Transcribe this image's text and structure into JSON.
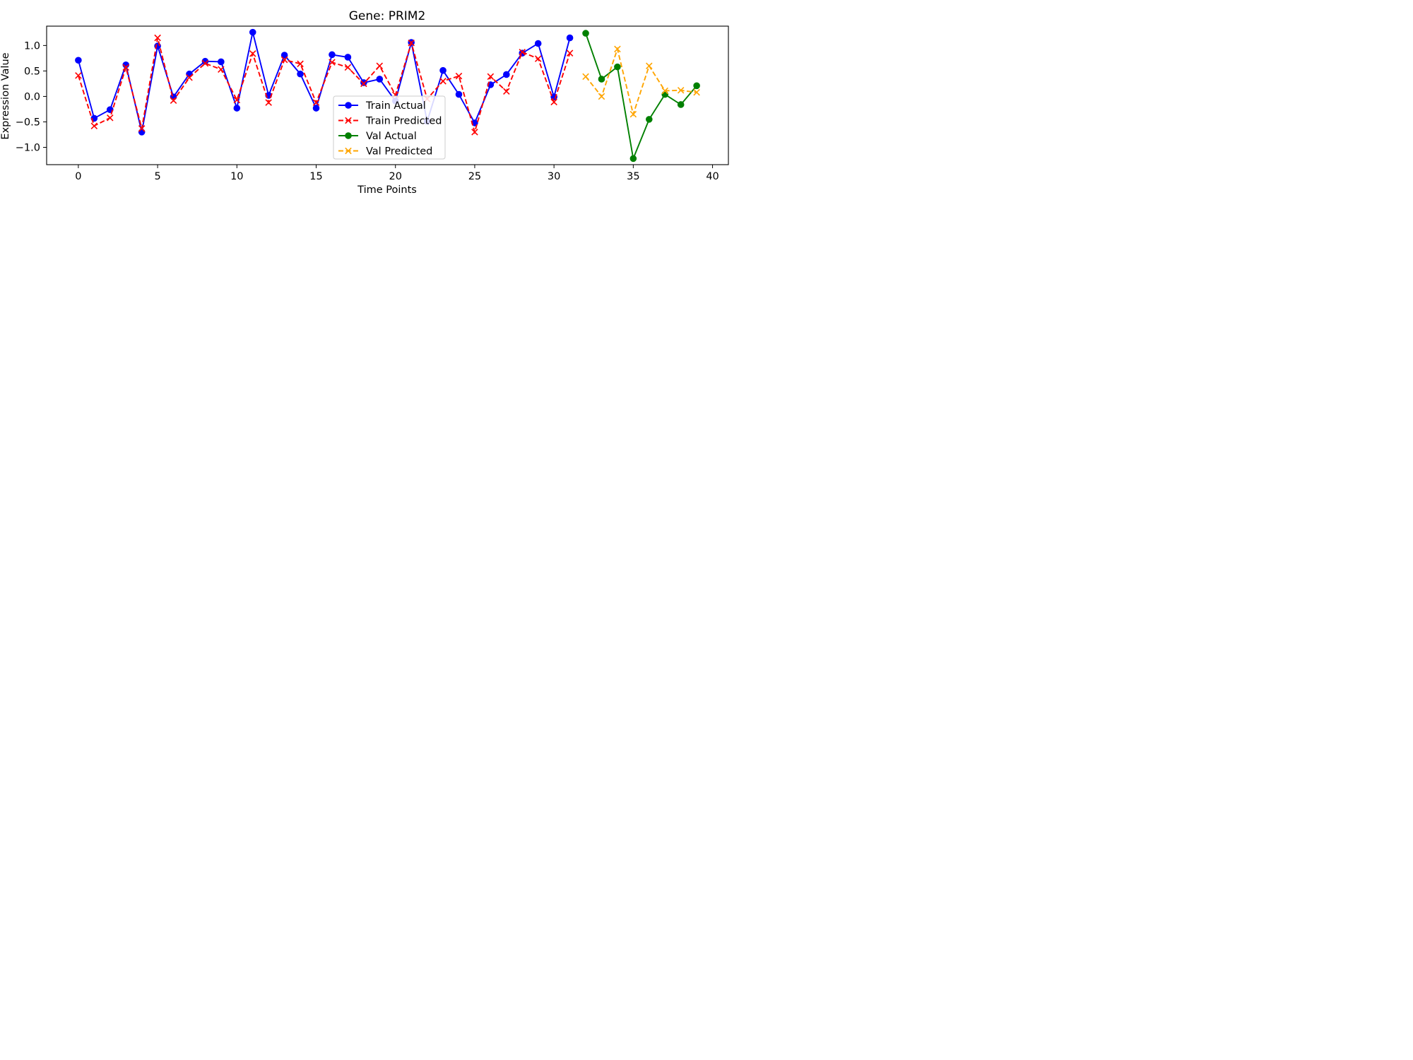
{
  "chart_data": {
    "type": "line",
    "title": "Gene: PRIM2",
    "xlabel": "Time Points",
    "ylabel": "Expression Value",
    "xlim": [
      -2,
      41
    ],
    "ylim": [
      -1.34,
      1.38
    ],
    "x_ticks": [
      0,
      5,
      10,
      15,
      20,
      25,
      30,
      35,
      40
    ],
    "y_ticks": [
      -1.0,
      -0.5,
      0.0,
      0.5,
      1.0
    ],
    "grid": false,
    "legend_position": "center",
    "series": [
      {
        "name": "Train Actual",
        "color": "#0000ff",
        "style": "solid",
        "marker": "circle",
        "x": [
          0,
          1,
          2,
          3,
          4,
          5,
          6,
          7,
          8,
          9,
          10,
          11,
          12,
          13,
          14,
          15,
          16,
          17,
          18,
          19,
          20,
          21,
          22,
          23,
          24,
          25,
          26,
          27,
          28,
          29,
          30,
          31
        ],
        "values": [
          0.71,
          -0.43,
          -0.26,
          0.62,
          -0.7,
          0.99,
          -0.01,
          0.44,
          0.69,
          0.68,
          -0.23,
          1.26,
          0.02,
          0.81,
          0.44,
          -0.23,
          0.82,
          0.77,
          0.27,
          0.34,
          -0.09,
          1.06,
          -0.49,
          0.51,
          0.04,
          -0.52,
          0.23,
          0.43,
          0.85,
          1.04,
          -0.01,
          1.15
        ]
      },
      {
        "name": "Train Predicted",
        "color": "#ff0000",
        "style": "dashed",
        "marker": "x",
        "x": [
          0,
          1,
          2,
          3,
          4,
          5,
          6,
          7,
          8,
          9,
          10,
          11,
          12,
          13,
          14,
          15,
          16,
          17,
          18,
          19,
          20,
          21,
          22,
          23,
          24,
          25,
          26,
          27,
          28,
          29,
          30,
          31
        ],
        "values": [
          0.41,
          -0.58,
          -0.42,
          0.57,
          -0.63,
          1.15,
          -0.08,
          0.37,
          0.65,
          0.53,
          -0.07,
          0.84,
          -0.12,
          0.72,
          0.64,
          -0.12,
          0.67,
          0.57,
          0.25,
          0.6,
          0.03,
          1.05,
          -0.05,
          0.3,
          0.4,
          -0.7,
          0.39,
          0.1,
          0.87,
          0.74,
          -0.11,
          0.85
        ]
      },
      {
        "name": "Val Actual",
        "color": "#008000",
        "style": "solid",
        "marker": "circle",
        "x": [
          32,
          33,
          34,
          35,
          36,
          37,
          38,
          39
        ],
        "values": [
          1.24,
          0.34,
          0.58,
          -1.22,
          -0.45,
          0.04,
          -0.16,
          0.21
        ]
      },
      {
        "name": "Val Predicted",
        "color": "#ffa500",
        "style": "dashed",
        "marker": "x",
        "x": [
          32,
          33,
          34,
          35,
          36,
          37,
          38,
          39
        ],
        "values": [
          0.39,
          0.0,
          0.93,
          -0.35,
          0.6,
          0.11,
          0.12,
          0.08
        ]
      }
    ]
  }
}
